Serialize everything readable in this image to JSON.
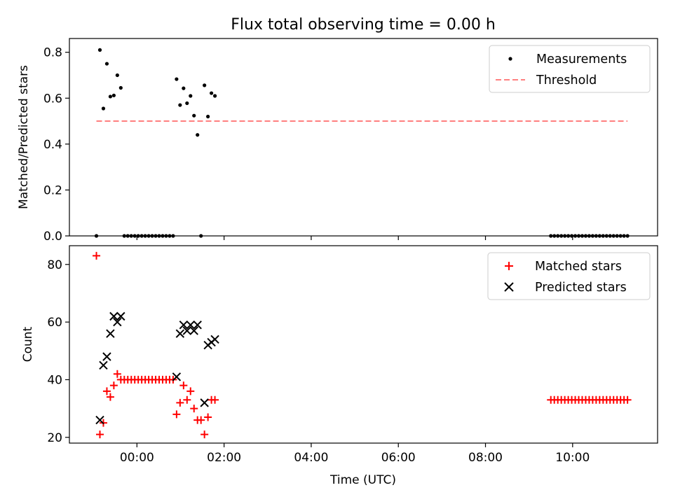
{
  "chart_data": [
    {
      "type": "scatter",
      "title": "Flux total observing time = 0.00 h",
      "xlabel": "",
      "ylabel": "Matched/Predicted stars",
      "xlim": [
        -1.55,
        11.95
      ],
      "ylim": [
        0,
        0.86
      ],
      "yticks": [
        0.0,
        0.2,
        0.4,
        0.6,
        0.8
      ],
      "ytick_labels": [
        "0.0",
        "0.2",
        "0.4",
        "0.6",
        "0.8"
      ],
      "xticks": [
        0,
        2,
        4,
        6,
        8,
        10
      ],
      "legend_position": "upper right",
      "legend": [
        "Measurements",
        "Threshold"
      ],
      "colors": {
        "measurements": "#000000",
        "threshold": "#ff7f7f"
      },
      "series": [
        {
          "name": "Measurements",
          "marker": "dot",
          "x": [
            -0.93,
            -0.85,
            -0.77,
            -0.69,
            -0.61,
            -0.53,
            -0.45,
            -0.37,
            -0.29,
            -0.21,
            -0.13,
            -0.05,
            0.03,
            0.11,
            0.19,
            0.27,
            0.35,
            0.43,
            0.51,
            0.59,
            0.67,
            0.75,
            0.83,
            0.91,
            0.99,
            1.07,
            1.15,
            1.23,
            1.31,
            1.39,
            1.47,
            1.55,
            1.63,
            1.71,
            1.79,
            9.5,
            9.58,
            9.66,
            9.74,
            9.82,
            9.9,
            9.98,
            10.06,
            10.14,
            10.22,
            10.3,
            10.38,
            10.46,
            10.54,
            10.62,
            10.7,
            10.78,
            10.86,
            10.94,
            11.02,
            11.1,
            11.18,
            11.26
          ],
          "y": [
            0.0,
            0.81,
            0.555,
            0.75,
            0.607,
            0.612,
            0.7,
            0.645,
            0.0,
            0.0,
            0.0,
            0.0,
            0.0,
            0.0,
            0.0,
            0.0,
            0.0,
            0.0,
            0.0,
            0.0,
            0.0,
            0.0,
            0.0,
            0.683,
            0.57,
            0.643,
            0.578,
            0.61,
            0.524,
            0.44,
            0.0,
            0.656,
            0.52,
            0.622,
            0.61,
            0.0,
            0.0,
            0.0,
            0.0,
            0.0,
            0.0,
            0.0,
            0.0,
            0.0,
            0.0,
            0.0,
            0.0,
            0.0,
            0.0,
            0.0,
            0.0,
            0.0,
            0.0,
            0.0,
            0.0,
            0.0,
            0.0,
            0.0
          ]
        },
        {
          "name": "Threshold",
          "style": "dashed",
          "x": [
            -0.93,
            11.26
          ],
          "y": [
            0.5,
            0.5
          ]
        }
      ]
    },
    {
      "type": "scatter",
      "title": "",
      "xlabel": "Time (UTC)",
      "ylabel": "Count",
      "xlim": [
        -1.55,
        11.95
      ],
      "ylim": [
        18,
        86.5
      ],
      "yticks": [
        20,
        40,
        60,
        80
      ],
      "ytick_labels": [
        "20",
        "40",
        "60",
        "80"
      ],
      "xticks": [
        0,
        2,
        4,
        6,
        8,
        10
      ],
      "xtick_labels": [
        "00:00",
        "02:00",
        "04:00",
        "06:00",
        "08:00",
        "10:00"
      ],
      "legend_position": "upper right",
      "legend": [
        "Matched stars",
        "Predicted stars"
      ],
      "colors": {
        "matched": "#ff0000",
        "predicted": "#000000"
      },
      "series": [
        {
          "name": "Matched stars",
          "marker": "plus",
          "x": [
            -0.93,
            -0.85,
            -0.77,
            -0.69,
            -0.61,
            -0.53,
            -0.45,
            -0.37,
            -0.29,
            -0.21,
            -0.13,
            -0.05,
            0.03,
            0.11,
            0.19,
            0.27,
            0.35,
            0.43,
            0.51,
            0.59,
            0.67,
            0.75,
            0.83,
            0.91,
            0.99,
            1.07,
            1.15,
            1.23,
            1.31,
            1.39,
            1.47,
            1.55,
            1.63,
            1.71,
            1.79,
            9.5,
            9.58,
            9.66,
            9.74,
            9.82,
            9.9,
            9.98,
            10.06,
            10.14,
            10.22,
            10.3,
            10.38,
            10.46,
            10.54,
            10.62,
            10.7,
            10.78,
            10.86,
            10.94,
            11.02,
            11.1,
            11.18,
            11.26
          ],
          "y": [
            83,
            21,
            25,
            36,
            34,
            38,
            42,
            40,
            40,
            40,
            40,
            40,
            40,
            40,
            40,
            40,
            40,
            40,
            40,
            40,
            40,
            40,
            40,
            28,
            32,
            38,
            33,
            36,
            30,
            26,
            26,
            21,
            27,
            33,
            33,
            33,
            33,
            33,
            33,
            33,
            33,
            33,
            33,
            33,
            33,
            33,
            33,
            33,
            33,
            33,
            33,
            33,
            33,
            33,
            33,
            33,
            33,
            33
          ]
        },
        {
          "name": "Predicted stars",
          "marker": "x",
          "x": [
            -0.85,
            -0.77,
            -0.69,
            -0.61,
            -0.53,
            -0.45,
            -0.37,
            0.91,
            0.99,
            1.07,
            1.15,
            1.23,
            1.31,
            1.39,
            1.55,
            1.63,
            1.71,
            1.79
          ],
          "y": [
            26,
            45,
            48,
            56,
            62,
            60,
            62,
            41,
            56,
            59,
            57,
            59,
            57,
            59,
            32,
            52,
            53,
            54
          ]
        }
      ]
    }
  ]
}
